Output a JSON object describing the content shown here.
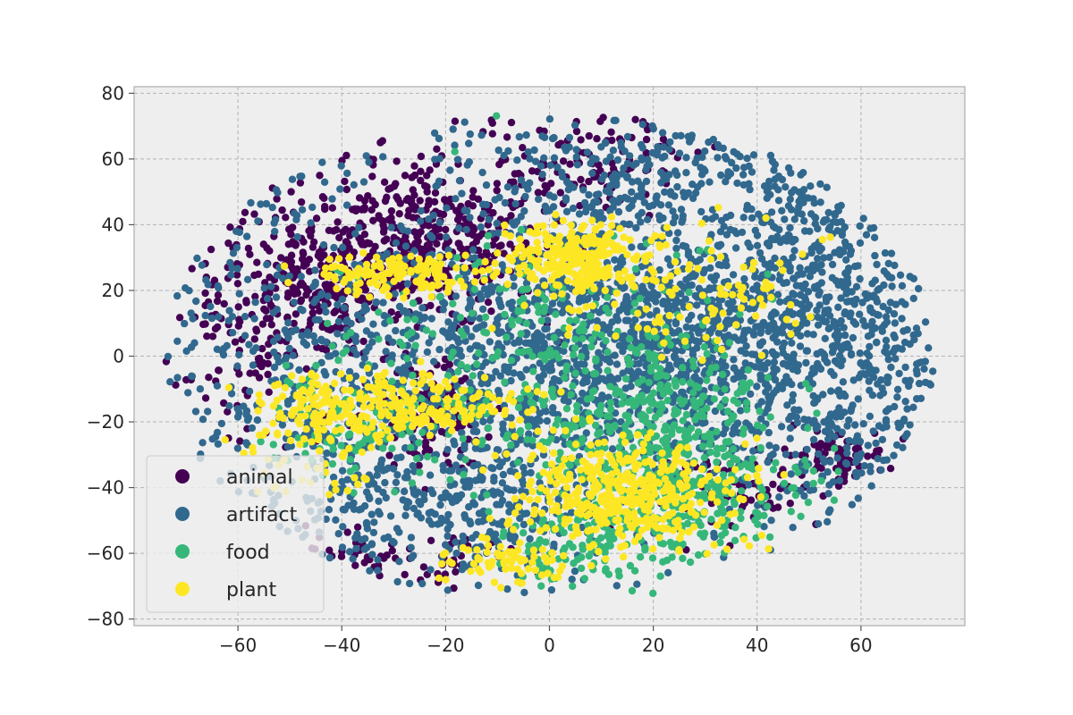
{
  "chart_data": {
    "type": "scatter",
    "title": "",
    "xlabel": "",
    "ylabel": "",
    "xlim": [
      -80,
      80
    ],
    "ylim": [
      -82,
      82
    ],
    "xticks": [
      -60,
      -40,
      -20,
      0,
      20,
      40,
      60
    ],
    "yticks": [
      -80,
      -60,
      -40,
      -20,
      0,
      20,
      40,
      60,
      80
    ],
    "xtick_labels": [
      "−60",
      "−40",
      "−20",
      "0",
      "20",
      "40",
      "60"
    ],
    "ytick_labels": [
      "−80",
      "−60",
      "−40",
      "−20",
      "0",
      "20",
      "40",
      "60",
      "80"
    ],
    "grid": true,
    "background": "#eeeeee",
    "legend_position": "lower-left",
    "series": [
      {
        "name": "animal",
        "color": "#440154",
        "clusters": [
          {
            "x": -25,
            "y": 35,
            "sx": 12,
            "sy": 12,
            "n": 420
          },
          {
            "x": -45,
            "y": 20,
            "sx": 7,
            "sy": 10,
            "n": 180
          },
          {
            "x": -58,
            "y": 10,
            "sx": 7,
            "sy": 18,
            "n": 120
          },
          {
            "x": -22,
            "y": -18,
            "sx": 6,
            "sy": 8,
            "n": 120
          },
          {
            "x": 8,
            "y": 58,
            "sx": 10,
            "sy": 8,
            "n": 110
          },
          {
            "x": 55,
            "y": -30,
            "sx": 5,
            "sy": 4,
            "n": 70
          },
          {
            "x": 40,
            "y": -42,
            "sx": 10,
            "sy": 6,
            "n": 70
          },
          {
            "x": -30,
            "y": -62,
            "sx": 12,
            "sy": 4,
            "n": 60
          }
        ]
      },
      {
        "name": "artifact",
        "color": "#31688e",
        "clusters": [
          {
            "x": 15,
            "y": 5,
            "sx": 25,
            "sy": 22,
            "n": 1500
          },
          {
            "x": -40,
            "y": -5,
            "sx": 18,
            "sy": 28,
            "n": 520
          },
          {
            "x": 45,
            "y": 10,
            "sx": 15,
            "sy": 25,
            "n": 520
          },
          {
            "x": -15,
            "y": -45,
            "sx": 16,
            "sy": 12,
            "n": 320
          },
          {
            "x": 15,
            "y": 55,
            "sx": 18,
            "sy": 10,
            "n": 220
          },
          {
            "x": 60,
            "y": -10,
            "sx": 8,
            "sy": 20,
            "n": 160
          }
        ]
      },
      {
        "name": "food",
        "color": "#35b779",
        "clusters": [
          {
            "x": 20,
            "y": -25,
            "sx": 12,
            "sy": 15,
            "n": 420
          },
          {
            "x": 30,
            "y": -45,
            "sx": 9,
            "sy": 8,
            "n": 140
          },
          {
            "x": 5,
            "y": -58,
            "sx": 10,
            "sy": 6,
            "n": 110
          },
          {
            "x": 0,
            "y": 5,
            "sx": 18,
            "sy": 18,
            "n": 240
          },
          {
            "x": -35,
            "y": -20,
            "sx": 10,
            "sy": 10,
            "n": 120
          }
        ]
      },
      {
        "name": "plant",
        "color": "#fde725",
        "clusters": [
          {
            "x": 15,
            "y": -42,
            "sx": 10,
            "sy": 8,
            "n": 420
          },
          {
            "x": 5,
            "y": 30,
            "sx": 6,
            "sy": 5,
            "n": 240
          },
          {
            "x": -28,
            "y": 25,
            "sx": 9,
            "sy": 3,
            "n": 150
          },
          {
            "x": -30,
            "y": -15,
            "sx": 12,
            "sy": 5,
            "n": 260
          },
          {
            "x": -45,
            "y": -25,
            "sx": 6,
            "sy": 8,
            "n": 90
          },
          {
            "x": 25,
            "y": 20,
            "sx": 12,
            "sy": 10,
            "n": 120
          },
          {
            "x": -8,
            "y": -62,
            "sx": 6,
            "sy": 4,
            "n": 70
          }
        ]
      }
    ]
  }
}
